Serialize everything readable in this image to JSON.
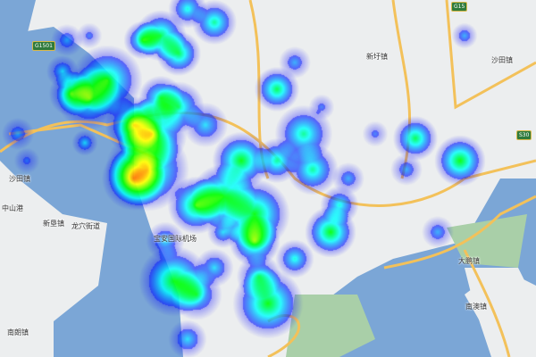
{
  "map": {
    "colors": {
      "land": "#eceeef",
      "water": "#7ba6d6",
      "green": "#a9cfa8",
      "road": "#f3c15a"
    },
    "heat_palette": [
      "#0000ff",
      "#00ffff",
      "#00ff00",
      "#ffff00",
      "#ff0000"
    ],
    "labels": [
      {
        "id": "xinxu",
        "text": "新圩镇"
      },
      {
        "id": "shatian",
        "text": "沙田镇"
      },
      {
        "id": "dapeng",
        "text": "大鹏镇"
      },
      {
        "id": "nanao",
        "text": "南澳镇"
      },
      {
        "id": "xinken",
        "text": "新垦镇"
      },
      {
        "id": "longxue",
        "text": "龙穴街道"
      },
      {
        "id": "zhongshan",
        "text": "中山港"
      },
      {
        "id": "nanlang",
        "text": "南朗镇"
      },
      {
        "id": "shatou",
        "text": "沙田镇"
      },
      {
        "id": "baoan",
        "text": "宝安国际机场"
      }
    ],
    "road_shields": [
      "G1501",
      "G15",
      "S30"
    ]
  }
}
